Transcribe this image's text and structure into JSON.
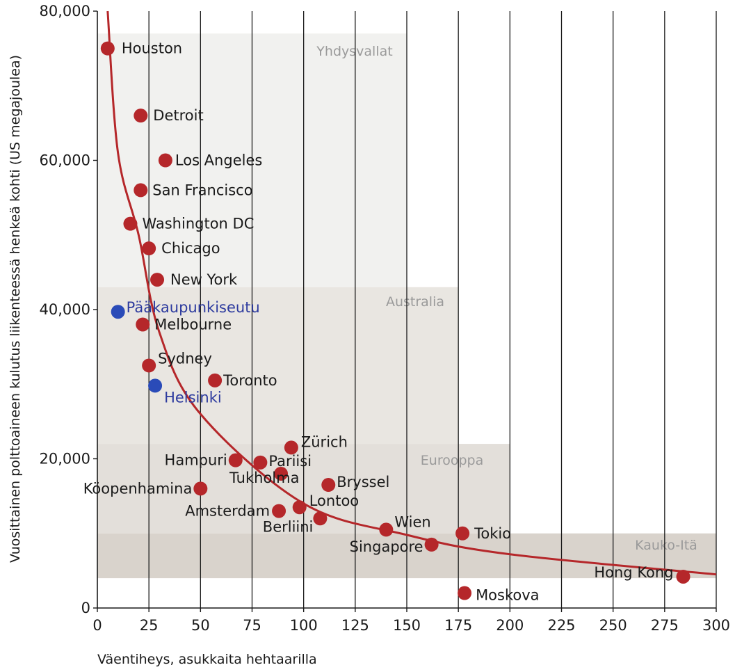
{
  "chart_data": {
    "type": "scatter",
    "xlabel": "Väentiheys, asukkaita hehtaarilla",
    "ylabel": "Vuosittainen polttoaineen kulutus liikenteessä henkeä kohti (US megajoulea)",
    "xlim": [
      0,
      300
    ],
    "ylim": [
      0,
      80000
    ],
    "x_ticks": [
      "0",
      "25",
      "50",
      "75",
      "100",
      "125",
      "150",
      "175",
      "200",
      "225",
      "250",
      "275",
      "300"
    ],
    "y_ticks": [
      "0",
      "20,000",
      "40,000",
      "60,000",
      "80,000"
    ],
    "grid": "vertical",
    "regions": [
      {
        "name": "Yhdysvallat",
        "x": [
          0,
          150
        ],
        "y": [
          43000,
          77000
        ],
        "color": "#f1f1ef"
      },
      {
        "name": "Australia",
        "x": [
          0,
          175
        ],
        "y": [
          22000,
          43000
        ],
        "color": "#e9e6e1"
      },
      {
        "name": "Eurooppa",
        "x": [
          0,
          200
        ],
        "y": [
          10000,
          22000
        ],
        "color": "#e3dfda"
      },
      {
        "name": "Kauko-Itä",
        "x": [
          0,
          300
        ],
        "y": [
          4000,
          10000
        ],
        "color": "#d9d3cc"
      }
    ],
    "series": [
      {
        "color": "#b5272a",
        "points": [
          {
            "label": "Houston",
            "x": 5,
            "y": 75000
          },
          {
            "label": "Detroit",
            "x": 21,
            "y": 66000
          },
          {
            "label": "Los Angeles",
            "x": 33,
            "y": 60000
          },
          {
            "label": "San Francisco",
            "x": 21,
            "y": 56000
          },
          {
            "label": "Washington DC",
            "x": 16,
            "y": 51500
          },
          {
            "label": "Chicago",
            "x": 25,
            "y": 48200
          },
          {
            "label": "New York",
            "x": 29,
            "y": 44000
          },
          {
            "label": "Melbourne",
            "x": 22,
            "y": 38000
          },
          {
            "label": "Sydney",
            "x": 25,
            "y": 32500
          },
          {
            "label": "Toronto",
            "x": 57,
            "y": 30500
          },
          {
            "label": "Zürich",
            "x": 94,
            "y": 21500
          },
          {
            "label": "Hampuri",
            "x": 67,
            "y": 19800
          },
          {
            "label": "Pariisi",
            "x": 79,
            "y": 19500
          },
          {
            "label": "Tukholma",
            "x": 89,
            "y": 18000
          },
          {
            "label": "Köopenhamina",
            "x": 50,
            "y": 16000
          },
          {
            "label": "Bryssel",
            "x": 112,
            "y": 16500
          },
          {
            "label": "Amsterdam",
            "x": 88,
            "y": 13000
          },
          {
            "label": "Lontoo",
            "x": 98,
            "y": 13500
          },
          {
            "label": "Berliini",
            "x": 108,
            "y": 12000
          },
          {
            "label": "Wien",
            "x": 140,
            "y": 10500
          },
          {
            "label": "Singapore",
            "x": 162,
            "y": 8500
          },
          {
            "label": "Tokio",
            "x": 177,
            "y": 10000
          },
          {
            "label": "Moskova",
            "x": 178,
            "y": 2000
          },
          {
            "label": "Hong Kong",
            "x": 284,
            "y": 4200
          }
        ]
      },
      {
        "color": "#2a4bb8",
        "points": [
          {
            "label": "Pääkaupunkiseutu",
            "x": 10,
            "y": 39700
          },
          {
            "label": "Helsinki",
            "x": 28,
            "y": 29800
          }
        ]
      }
    ],
    "trend_line": {
      "color": "#b5272a",
      "form": "power",
      "points": [
        [
          10,
          61000
        ],
        [
          20,
          50000
        ],
        [
          30,
          37000
        ],
        [
          50,
          26000
        ],
        [
          100,
          14000
        ],
        [
          150,
          9800
        ],
        [
          200,
          7200
        ],
        [
          300,
          4500
        ]
      ]
    }
  }
}
